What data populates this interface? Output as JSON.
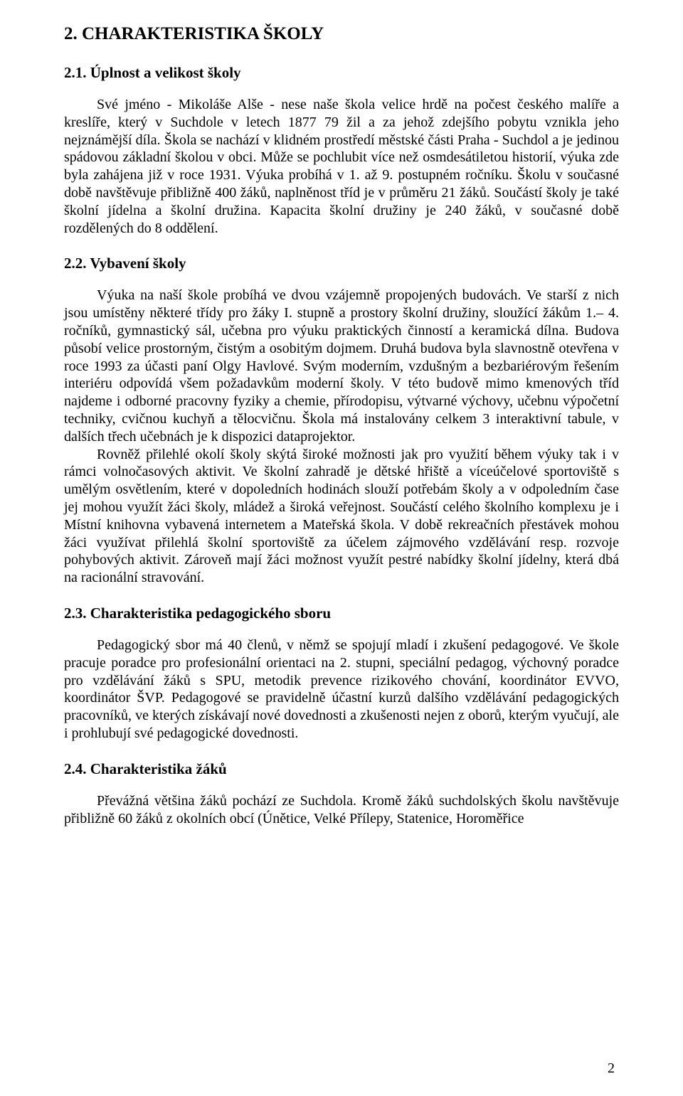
{
  "page": {
    "number": "2"
  },
  "headings": {
    "h2": "2. CHARAKTERISTIKA ŠKOLY",
    "s1": "2.1. Úplnost a velikost školy",
    "s2": "2.2. Vybavení školy",
    "s3": "2.3. Charakteristika pedagogického sboru",
    "s4": "2.4. Charakteristika žáků"
  },
  "paragraphs": {
    "p1": "Své jméno - Mikoláše Alše - nese naše škola velice hrdě na počest českého malíře a kreslíře, který v Suchdole v letech 1877 79 žil a za jehož zdejšího pobytu vznikla jeho nejznámější díla. Škola se nachází v klidném prostředí městské části Praha - Suchdol a je jedinou spádovou základní školou v obci. Může se pochlubit více než osmdesátiletou historií, výuka zde byla zahájena již v roce 1931. Výuka probíhá v 1. až 9. postupném ročníku. Školu v současné době navštěvuje přibližně 400 žáků, naplněnost tříd je v průměru 21 žáků. Součástí školy je také školní jídelna a školní družina. Kapacita školní družiny je 240 žáků, v současné době rozdělených do 8 oddělení.",
    "p2": "Výuka na naší škole probíhá ve dvou vzájemně propojených budovách. Ve starší z nich jsou umístěny některé třídy pro žáky I. stupně a prostory školní družiny, sloužící žákům 1.– 4. ročníků, gymnastický sál, učebna pro výuku praktických činností a keramická dílna. Budova působí velice prostorným, čistým a osobitým dojmem. Druhá budova byla slavnostně otevřena v roce 1993 za účasti paní Olgy Havlové. Svým moderním, vzdušným a bezbariérovým řešením interiéru odpovídá všem požadavkům moderní školy. V této budově mimo kmenových tříd najdeme i odborné pracovny fyziky a chemie, přírodopisu, výtvarné výchovy, učebnu výpočetní techniky, cvičnou kuchyň a tělocvičnu. Škola má instalovány celkem 3 interaktivní tabule, v dalších třech učebnách je k dispozici dataprojektor.",
    "p3": "Rovněž přilehlé okolí školy skýtá široké možnosti jak pro využití během výuky tak i v rámci volnočasových aktivit. Ve školní zahradě je dětské hřiště a víceúčelové sportoviště s umělým osvětlením, které v dopoledních hodinách slouží potřebám školy a v odpoledním čase jej mohou využít žáci školy, mládež a široká veřejnost. Součástí celého školního komplexu je i Místní knihovna vybavená internetem a Mateřská škola. V době rekreačních přestávek mohou žáci využívat přilehlá školní sportoviště za účelem zájmového vzdělávání resp. rozvoje pohybových aktivit. Zároveň mají žáci možnost využít pestré nabídky školní jídelny, která dbá na racionální stravování.",
    "p4": "Pedagogický sbor má 40 členů, v němž se spojují mladí i zkušení pedagogové. Ve škole pracuje poradce pro profesionální orientaci na 2. stupni, speciální pedagog, výchovný poradce pro vzdělávání žáků s SPU, metodik prevence rizikového chování, koordinátor EVVO, koordinátor ŠVP. Pedagogové se pravidelně účastní kurzů dalšího vzdělávání pedagogických pracovníků, ve kterých získávají nové dovednosti a zkušenosti nejen z oborů, kterým vyučují, ale i prohlubují své pedagogické dovednosti.",
    "p5": "Převážná většina žáků pochází ze Suchdola. Kromě žáků suchdolských školu navštěvuje přibližně 60 žáků z okolních obcí (Únětice, Velké Přílepy, Statenice, Horoměřice"
  }
}
